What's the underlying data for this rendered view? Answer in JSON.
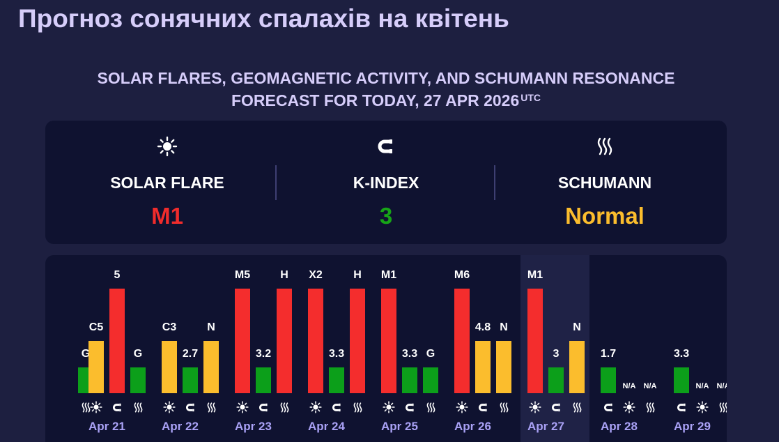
{
  "page": {
    "title": "Прогноз сонячних спалахів на квітень",
    "heading_line1": "SOLAR FLARES, GEOMAGNETIC ACTIVITY, AND SCHUMANN RESONANCE",
    "heading_line2": "FORECAST FOR TODAY, 27 APR 2026",
    "heading_sup": "UTC"
  },
  "summary": [
    {
      "icon": "sun-icon",
      "label": "SOLAR FLARE",
      "value": "M1",
      "color": "#f12c2c"
    },
    {
      "icon": "magnet-icon",
      "label": "K-INDEX",
      "value": "3",
      "color": "#17a417"
    },
    {
      "icon": "waves-icon",
      "label": "SCHUMANN",
      "value": "Normal",
      "color": "#fbbd2d"
    }
  ],
  "colors": {
    "red": "#f42d2d",
    "yellow": "#fbbd2d",
    "green": "#0c9f1a",
    "dayLabel": "#a9a1f5"
  },
  "chart_data": {
    "type": "bar",
    "series_names": [
      "Solar flare",
      "K-index",
      "Schumann"
    ],
    "days": [
      {
        "label": "",
        "bars": [
          {
            "type": "schumann",
            "text": "G",
            "level": "G"
          }
        ]
      },
      {
        "label": "Apr 21",
        "bars": [
          {
            "type": "flare",
            "text": "C5",
            "level": "C"
          },
          {
            "type": "kindex",
            "text": "5",
            "value": 5
          },
          {
            "type": "schumann",
            "text": "G",
            "level": "G"
          }
        ]
      },
      {
        "label": "Apr 22",
        "bars": [
          {
            "type": "flare",
            "text": "C3",
            "level": "C"
          },
          {
            "type": "kindex",
            "text": "2.7",
            "value": 2.7
          },
          {
            "type": "schumann",
            "text": "N",
            "level": "N"
          }
        ]
      },
      {
        "label": "Apr 23",
        "bars": [
          {
            "type": "flare",
            "text": "M5",
            "level": "M"
          },
          {
            "type": "kindex",
            "text": "3.2",
            "value": 3.2
          },
          {
            "type": "schumann",
            "text": "H",
            "level": "H"
          }
        ]
      },
      {
        "label": "Apr 24",
        "bars": [
          {
            "type": "flare",
            "text": "X2",
            "level": "X"
          },
          {
            "type": "kindex",
            "text": "3.3",
            "value": 3.3
          },
          {
            "type": "schumann",
            "text": "H",
            "level": "H"
          }
        ]
      },
      {
        "label": "Apr 25",
        "bars": [
          {
            "type": "flare",
            "text": "M1",
            "level": "M"
          },
          {
            "type": "kindex",
            "text": "3.3",
            "value": 3.3
          },
          {
            "type": "schumann",
            "text": "G",
            "level": "G"
          }
        ]
      },
      {
        "label": "Apr 26",
        "bars": [
          {
            "type": "flare",
            "text": "M6",
            "level": "M"
          },
          {
            "type": "kindex",
            "text": "4.8",
            "value": 4.8
          },
          {
            "type": "schumann",
            "text": "N",
            "level": "N"
          }
        ]
      },
      {
        "label": "Apr 27",
        "today": true,
        "bars": [
          {
            "type": "flare",
            "text": "M1",
            "level": "M"
          },
          {
            "type": "kindex",
            "text": "3",
            "value": 3
          },
          {
            "type": "schumann",
            "text": "N",
            "level": "N"
          }
        ]
      },
      {
        "label": "Apr 28",
        "bars": [
          {
            "type": "kindex",
            "text": "1.7",
            "value": 1.7
          },
          {
            "type": "flare",
            "text": "N/A",
            "level": "NA"
          },
          {
            "type": "schumann",
            "text": "N/A",
            "level": "NA"
          }
        ]
      },
      {
        "label": "Apr 29",
        "bars": [
          {
            "type": "kindex",
            "text": "3.3",
            "value": 3.3
          },
          {
            "type": "flare",
            "text": "N/A",
            "level": "NA"
          },
          {
            "type": "schumann",
            "text": "N/A",
            "level": "NA"
          }
        ]
      }
    ]
  }
}
